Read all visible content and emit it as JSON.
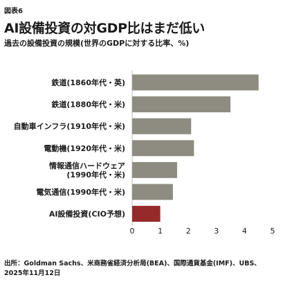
{
  "figure_label": "図表6",
  "source": "出所：Goldman Sachs、米商務省経済分析局(BEA)、国際通貨基金(IMF)、UBS、2025年11月12日",
  "colors": {
    "bar_default": "#8e8c81",
    "bar_highlight": "#962a2a",
    "axis": "#bbbbbb"
  },
  "chart_data": {
    "type": "bar",
    "orientation": "horizontal",
    "title": "AI設備投資の対GDP比はまだ低い",
    "subtitle": "過去の設備投資の規模(世界のGDPに対する比率、%)",
    "categories": [
      [
        "鉄道(1860年代・英)"
      ],
      [
        "鉄道(1880年代・米)"
      ],
      [
        "自動車インフラ(1910年代・米)"
      ],
      [
        "電動機(1920年代・米)"
      ],
      [
        "情報通信ハードウェア",
        "(1990年代・米)"
      ],
      [
        "電気通信(1990年代・米)"
      ],
      [
        "AI設備投資(CIO予想)"
      ]
    ],
    "values": [
      4.5,
      3.5,
      2.1,
      2.2,
      1.6,
      1.45,
      1.0
    ],
    "highlight_index": 6,
    "xlim": [
      0,
      5
    ],
    "xticks": [
      0,
      1,
      2,
      3,
      4,
      5
    ],
    "grid": false
  }
}
